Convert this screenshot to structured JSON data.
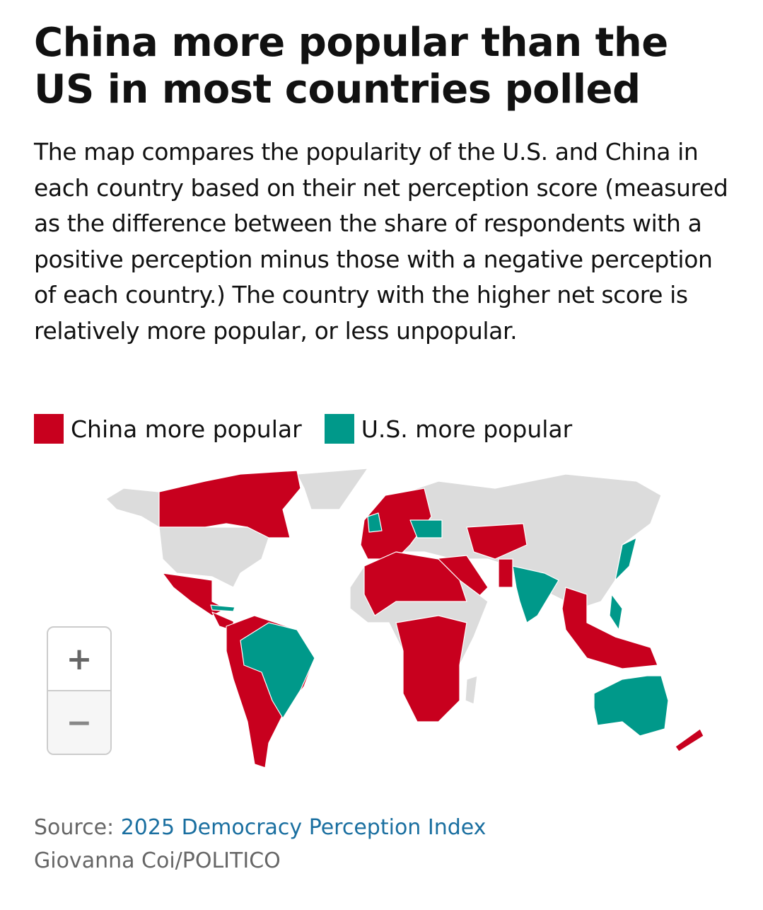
{
  "title": "China more popular than the US in most countries polled",
  "description": "The map compares the popularity of the U.S. and China in each country based on their net perception score (measured as the difference between the share of respondents with a positive perception minus those with a negative perception of each country.) The country with the higher net score is relatively more popular, or less unpopular.",
  "legend": [
    {
      "label": "China more popular",
      "color": "#c8001e"
    },
    {
      "label": "U.S. more popular",
      "color": "#00998a"
    }
  ],
  "colors": {
    "not_polled": "#dcdcdc"
  },
  "zoom_controls": {
    "zoom_in": "+",
    "zoom_out": "−"
  },
  "source": {
    "prefix": "Source: ",
    "link_text": "2025 Democracy Perception Index"
  },
  "credit": "Giovanna Coi/POLITICO"
}
